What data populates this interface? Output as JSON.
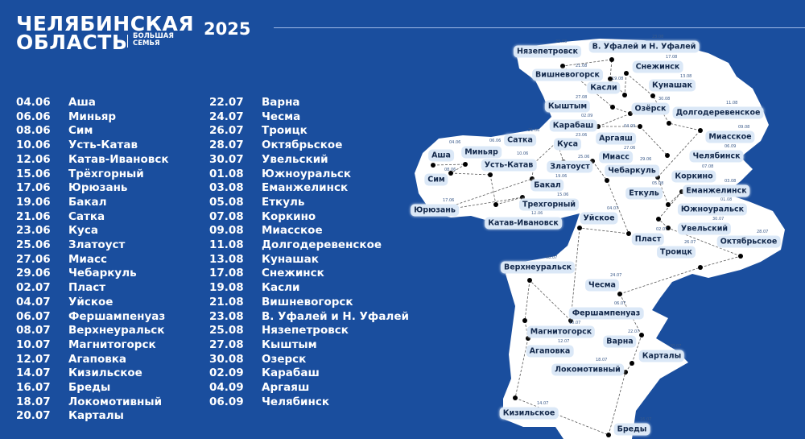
{
  "header": {
    "title_line1": "ЧЕЛЯБИНСКАЯ",
    "title_line2": "ОБЛАСТЬ",
    "subtitle_line1": "БОЛЬШАЯ",
    "subtitle_line2": "СЕМЬЯ",
    "year": "2025"
  },
  "colors": {
    "background": "#1a4e9e",
    "map_fill": "#ffffff",
    "label_bg": "#dbe8f7",
    "label_text": "#13284a"
  },
  "schedule_left": [
    {
      "date": "04.06",
      "city": "Аша"
    },
    {
      "date": "06.06",
      "city": "Миньяр"
    },
    {
      "date": "08.06",
      "city": "Сим"
    },
    {
      "date": "10.06",
      "city": "Усть-Катав"
    },
    {
      "date": "12.06",
      "city": "Катав-Ивановск"
    },
    {
      "date": "15.06",
      "city": "Трёхгорный"
    },
    {
      "date": "17.06",
      "city": "Юрюзань"
    },
    {
      "date": "19.06",
      "city": "Бакал"
    },
    {
      "date": "21.06",
      "city": "Сатка"
    },
    {
      "date": "23.06",
      "city": "Куса"
    },
    {
      "date": "25.06",
      "city": "Златоуст"
    },
    {
      "date": "27.06",
      "city": "Миасс"
    },
    {
      "date": "29.06",
      "city": "Чебаркуль"
    },
    {
      "date": "02.07",
      "city": "Пласт"
    },
    {
      "date": "04.07",
      "city": "Уйское"
    },
    {
      "date": "06.07",
      "city": "Фершампенуаз"
    },
    {
      "date": "08.07",
      "city": "Верхнеуральск"
    },
    {
      "date": "10.07",
      "city": "Магнитогорск"
    },
    {
      "date": "12.07",
      "city": "Агаповка"
    },
    {
      "date": "14.07",
      "city": "Кизильское"
    },
    {
      "date": "16.07",
      "city": "Бреды"
    },
    {
      "date": "18.07",
      "city": "Локомотивный"
    },
    {
      "date": "20.07",
      "city": "Карталы"
    }
  ],
  "schedule_right": [
    {
      "date": "22.07",
      "city": "Варна"
    },
    {
      "date": "24.07",
      "city": "Чесма"
    },
    {
      "date": "26.07",
      "city": "Троицк"
    },
    {
      "date": "28.07",
      "city": "Октябрьское"
    },
    {
      "date": "30.07",
      "city": "Увельский"
    },
    {
      "date": "01.08",
      "city": "Южноуральск"
    },
    {
      "date": "03.08",
      "city": "Еманжелинск"
    },
    {
      "date": "05.08",
      "city": "Еткуль"
    },
    {
      "date": "07.08",
      "city": "Коркино"
    },
    {
      "date": "09.08",
      "city": "Миасское"
    },
    {
      "date": "11.08",
      "city": "Долгодеревенское"
    },
    {
      "date": "13.08",
      "city": "Кунашак"
    },
    {
      "date": "17.08",
      "city": "Снежинск"
    },
    {
      "date": "19.08",
      "city": "Касли"
    },
    {
      "date": "21.08",
      "city": "Вишневогорск"
    },
    {
      "date": "23.08",
      "city": "В. Уфалей и Н. Уфалей"
    },
    {
      "date": "25.08",
      "city": "Нязепетровск"
    },
    {
      "date": "27.08",
      "city": "Кыштым"
    },
    {
      "date": "30.08",
      "city": "Озерск"
    },
    {
      "date": "02.09",
      "city": "Карабаш"
    },
    {
      "date": "04.09",
      "city": "Аргаяш"
    },
    {
      "date": "06.09",
      "city": "Челябинск"
    }
  ],
  "map_labels": [
    {
      "name": "Аша",
      "date": "04.06"
    },
    {
      "name": "Миньяр",
      "date": "06.06"
    },
    {
      "name": "Сим",
      "date": "08.06"
    },
    {
      "name": "Усть-Катав",
      "date": "10.06"
    },
    {
      "name": "Катав-Ивановск",
      "date": "12.06"
    },
    {
      "name": "Трехгорный",
      "date": "15.06"
    },
    {
      "name": "Юрюзань",
      "date": "17.06"
    },
    {
      "name": "Бакал",
      "date": "19.06"
    },
    {
      "name": "Сатка",
      "date": "21.06"
    },
    {
      "name": "Куса",
      "date": "23.06"
    },
    {
      "name": "Златоуст",
      "date": "25.06"
    },
    {
      "name": "Миасс",
      "date": "27.06"
    },
    {
      "name": "Чебаркуль",
      "date": "29.06"
    },
    {
      "name": "Пласт",
      "date": "02.07"
    },
    {
      "name": "Уйское",
      "date": "04.07"
    },
    {
      "name": "Фершампенуаз",
      "date": "06.07"
    },
    {
      "name": "Верхнеуральск",
      "date": "08.07"
    },
    {
      "name": "Магнитогорск",
      "date": "10.07"
    },
    {
      "name": "Агаповка",
      "date": "12.07"
    },
    {
      "name": "Кизильское",
      "date": "14.07"
    },
    {
      "name": "Бреды",
      "date": "16.07"
    },
    {
      "name": "Локомотивный",
      "date": "18.07"
    },
    {
      "name": "Карталы",
      "date": "20.07"
    },
    {
      "name": "Варна",
      "date": "22.07"
    },
    {
      "name": "Чесма",
      "date": "24.07"
    },
    {
      "name": "Троицк",
      "date": "26.07"
    },
    {
      "name": "Октябрьское",
      "date": "28.07"
    },
    {
      "name": "Увельский",
      "date": "30.07"
    },
    {
      "name": "Южноуральск",
      "date": "01.08"
    },
    {
      "name": "Еманжелинск",
      "date": "03.08"
    },
    {
      "name": "Еткуль",
      "date": "05.08"
    },
    {
      "name": "Коркино",
      "date": "07.08"
    },
    {
      "name": "Миасское",
      "date": "09.08"
    },
    {
      "name": "Долгодеревенское",
      "date": "11.08"
    },
    {
      "name": "Кунашак",
      "date": "13.08"
    },
    {
      "name": "Снежинск",
      "date": "17.08"
    },
    {
      "name": "Касли",
      "date": "19.08"
    },
    {
      "name": "Вишневогорск",
      "date": "21.08"
    },
    {
      "name": "В. Уфалей и Н. Уфалей",
      "date": "23.08"
    },
    {
      "name": "Нязепетровск",
      "date": "25.08"
    },
    {
      "name": "Кыштым",
      "date": "27.08"
    },
    {
      "name": "Озёрск",
      "date": "30.08"
    },
    {
      "name": "Карабаш",
      "date": "02.09"
    },
    {
      "name": "Аргаяш",
      "date": "04.09"
    },
    {
      "name": "Челябинск",
      "date": "06.09"
    }
  ]
}
